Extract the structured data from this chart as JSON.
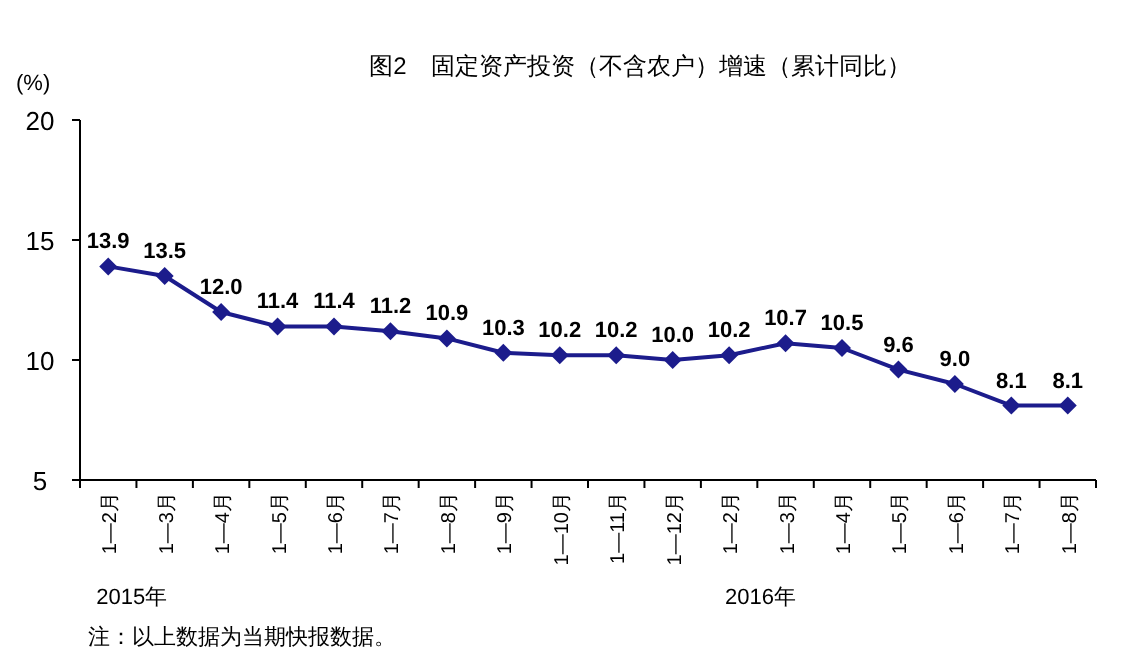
{
  "chart_data": {
    "type": "line",
    "title": "图2　固定资产投资（不含农户）增速（累计同比）",
    "ylabel": "(%)",
    "categories": [
      "1—2月",
      "1—3月",
      "1—4月",
      "1—5月",
      "1—6月",
      "1—7月",
      "1—8月",
      "1—9月",
      "1—10月",
      "1—11月",
      "1—12月",
      "1—2月",
      "1—3月",
      "1—4月",
      "1—5月",
      "1—6月",
      "1—7月",
      "1—8月"
    ],
    "series": [
      {
        "color": "#1c1c8c",
        "values": [
          13.9,
          13.5,
          12.0,
          11.4,
          11.4,
          11.2,
          10.9,
          10.3,
          10.2,
          10.2,
          10.0,
          10.2,
          10.7,
          10.5,
          9.6,
          9.0,
          8.1,
          8.1
        ],
        "value_labels": [
          "13.9",
          "13.5",
          "12.0",
          "11.4",
          "11.4",
          "11.2",
          "10.9",
          "10.3",
          "10.2",
          "10.2",
          "10.0",
          "10.2",
          "10.7",
          "10.5",
          "9.6",
          "9.0",
          "8.1",
          "8.1"
        ]
      }
    ],
    "ylim": [
      5,
      20
    ],
    "yticks": [
      5,
      10,
      15,
      20
    ],
    "marker": "diamond",
    "grid": false,
    "annotations": [
      "2015年",
      "2016年",
      "注：以上数据为当期快报数据。"
    ]
  }
}
